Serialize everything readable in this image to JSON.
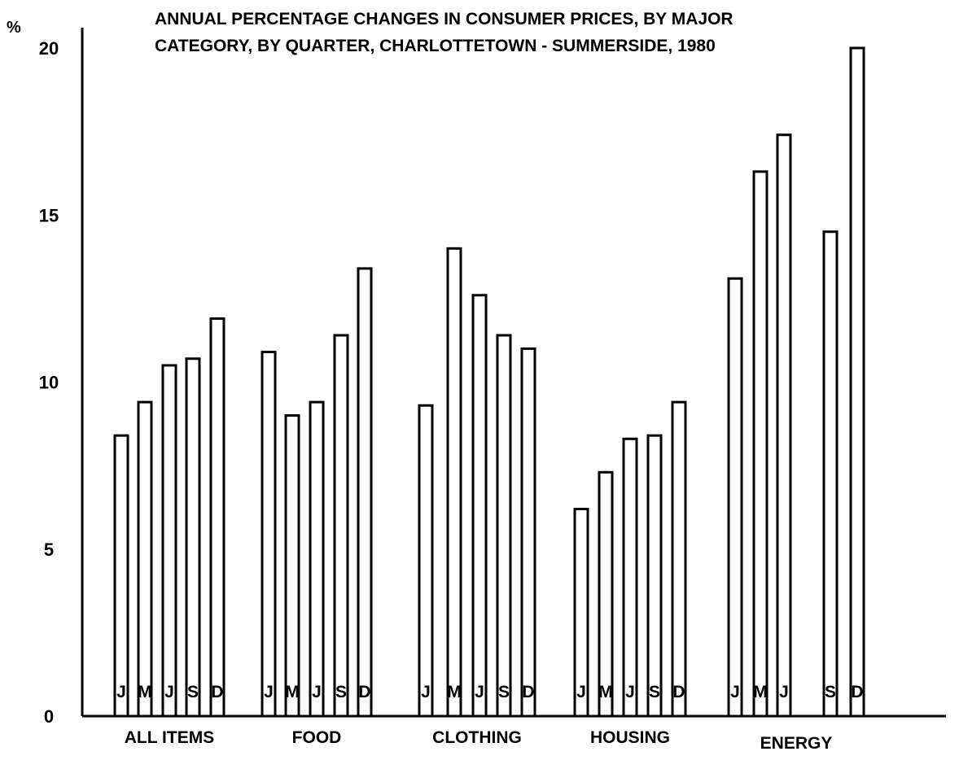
{
  "chart_data": {
    "type": "bar",
    "title_lines": [
      "ANNUAL PERCENTAGE CHANGES IN CONSUMER PRICES, BY MAJOR",
      "CATEGORY, BY QUARTER, CHARLOTTETOWN - SUMMERSIDE, 1980"
    ],
    "y_unit": "%",
    "ylim": [
      0,
      20
    ],
    "y_ticks": [
      "0",
      "5",
      "10",
      "15",
      "20"
    ],
    "quarters": [
      "J",
      "M",
      "J",
      "S",
      "D"
    ],
    "groups": [
      {
        "label": "ALL ITEMS",
        "values": [
          8.4,
          9.4,
          10.5,
          10.7,
          11.9
        ]
      },
      {
        "label": "FOOD",
        "values": [
          10.9,
          9.0,
          9.4,
          11.4,
          13.4
        ]
      },
      {
        "label": "CLOTHING",
        "values": [
          9.3,
          14.0,
          12.6,
          11.4,
          11.0
        ]
      },
      {
        "label": "HOUSING",
        "values": [
          6.2,
          7.3,
          8.3,
          8.4,
          9.4
        ]
      },
      {
        "label": "ENERGY",
        "values": [
          13.1,
          16.3,
          17.4,
          14.5,
          20.0
        ]
      }
    ],
    "grid": false,
    "legend": "none"
  }
}
